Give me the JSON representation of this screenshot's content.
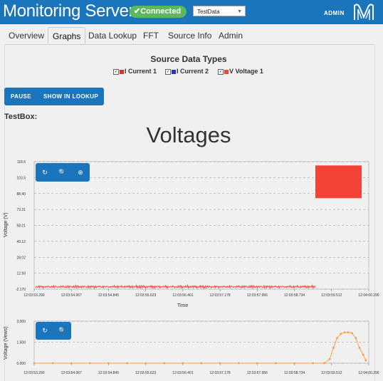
{
  "header": {
    "app_title": "Monitoring Server",
    "connection_status": "Connected",
    "source_select_value": "TestData",
    "admin_label": "ADMIN",
    "brand_color": "#1b75bc",
    "status_color": "#5cb85c"
  },
  "tabs": [
    "Overview",
    "Graphs",
    "Data Lookup",
    "FFT",
    "Source Info",
    "Admin"
  ],
  "active_tab": "Graphs",
  "source_types": {
    "title": "Source Data Types",
    "items": [
      {
        "letter": "I",
        "label": "Current 1",
        "color": "#d9342b",
        "checked": true
      },
      {
        "letter": "I",
        "label": "Current 2",
        "color": "#2b34c9",
        "checked": true
      },
      {
        "letter": "V",
        "label": "Voltage 1",
        "color": "#f44336",
        "checked": true
      }
    ]
  },
  "controls": {
    "pause_label": "PAUSE",
    "lookup_label": "SHOW IN LOOKUP"
  },
  "section_label": "TestBox:",
  "chart_data": [
    {
      "type": "line",
      "title": "Voltages",
      "xlabel": "Time",
      "ylabel": "Voltage (V)",
      "yticks": [
        "118.6",
        "103.5",
        "88.40",
        "73.31",
        "58.21",
        "43.12",
        "28.02",
        "12.93",
        "-2.170"
      ],
      "ylim": [
        -2.17,
        118.6
      ],
      "xticks": [
        "12:03:53.290",
        "12:03:54.067",
        "12:03:54.845",
        "12:03:55.623",
        "12:03:56.401",
        "12:03:57.178",
        "12:03:57.956",
        "12:03:58.734",
        "12:03:59.512",
        "12:04:00.290"
      ],
      "grid": true,
      "series": [
        {
          "color": "#f44336",
          "x_range": [
            "12:03:53.290",
            "12:03:59.310"
          ],
          "values": [
            0,
            0.3,
            -0.2,
            0.4,
            -0.3,
            0.2,
            -0.1,
            0.5,
            -0.4,
            0.3,
            0.1,
            -0.2,
            0.6,
            -0.5,
            0.2,
            0.4,
            -0.3,
            0.1,
            0.3,
            -0.1,
            0.2,
            -0.2,
            0.3,
            0.0
          ]
        },
        {
          "color": "#f44336",
          "type": "box",
          "x_range": [
            "12:03:59.310",
            "12:04:00.290"
          ],
          "y_range": [
            84.0,
            115.0
          ]
        }
      ]
    },
    {
      "type": "line",
      "title": "",
      "xlabel": "",
      "ylabel": "Voltage (Vews)",
      "yticks": [
        "3.000",
        "1.500",
        "0.000"
      ],
      "ylim": [
        0,
        3
      ],
      "xticks": [
        "12:03:53.290",
        "12:03:54.067",
        "12:03:54.845",
        "12:03:55.623",
        "12:03:56.401",
        "12:03:57.178",
        "12:03:57.956",
        "12:03:58.734",
        "12:03:59.512",
        "12:04:00.290"
      ],
      "grid": true,
      "series": [
        {
          "color": "#f5a04a",
          "points": [
            [
              0.0,
              0
            ],
            [
              0.5,
              0
            ],
            [
              1,
              0
            ],
            [
              1.5,
              0
            ],
            [
              2,
              0
            ],
            [
              2.5,
              0
            ],
            [
              3,
              0
            ],
            [
              3.5,
              0
            ],
            [
              4,
              0
            ],
            [
              4.5,
              0
            ],
            [
              5,
              0
            ],
            [
              5.5,
              0
            ],
            [
              6,
              0
            ],
            [
              6.5,
              0
            ],
            [
              7,
              0
            ],
            [
              7.5,
              0
            ],
            [
              7.8,
              0
            ],
            [
              7.95,
              0.3
            ],
            [
              8.05,
              1.1
            ],
            [
              8.15,
              1.8
            ],
            [
              8.25,
              2.1
            ],
            [
              8.35,
              2.2
            ],
            [
              8.45,
              2.2
            ],
            [
              8.55,
              2.15
            ],
            [
              8.65,
              1.8
            ],
            [
              8.75,
              1.1
            ],
            [
              8.85,
              0.6
            ],
            [
              8.92,
              0.2
            ]
          ]
        }
      ]
    }
  ]
}
